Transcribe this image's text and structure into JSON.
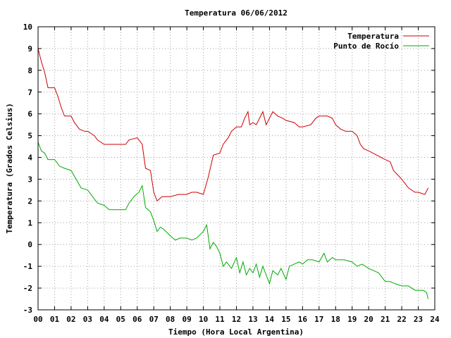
{
  "chart_data": {
    "type": "line",
    "title": "Temperatura 06/06/2012",
    "xlabel": "Tiempo (Hora Local Argentina)",
    "ylabel": "Temperatura (Grados Celsius)",
    "xlim": [
      0,
      24
    ],
    "ylim": [
      -3,
      10
    ],
    "x_ticks": [
      0,
      1,
      2,
      3,
      4,
      5,
      6,
      7,
      8,
      9,
      10,
      11,
      12,
      13,
      14,
      15,
      16,
      17,
      18,
      19,
      20,
      21,
      22,
      23,
      24
    ],
    "x_tick_labels": [
      "00",
      "01",
      "02",
      "03",
      "04",
      "05",
      "06",
      "07",
      "08",
      "09",
      "10",
      "11",
      "12",
      "13",
      "14",
      "15",
      "16",
      "17",
      "18",
      "19",
      "20",
      "21",
      "22",
      "23",
      "24"
    ],
    "y_ticks": [
      -3,
      -2,
      -1,
      0,
      1,
      2,
      3,
      4,
      5,
      6,
      7,
      8,
      9,
      10
    ],
    "y_tick_labels": [
      "-3",
      "-2",
      "-1",
      "0",
      "1",
      "2",
      "3",
      "4",
      "5",
      "6",
      "7",
      "8",
      "9",
      "10"
    ],
    "grid": true,
    "legend_position": "top-right",
    "series": [
      {
        "name": "Temperatura",
        "color": "#cc0000",
        "points": [
          [
            0.0,
            9.0
          ],
          [
            0.2,
            8.4
          ],
          [
            0.4,
            7.9
          ],
          [
            0.6,
            7.2
          ],
          [
            1.0,
            7.2
          ],
          [
            1.2,
            6.8
          ],
          [
            1.4,
            6.3
          ],
          [
            1.6,
            5.9
          ],
          [
            2.0,
            5.9
          ],
          [
            2.2,
            5.6
          ],
          [
            2.5,
            5.3
          ],
          [
            2.8,
            5.2
          ],
          [
            3.0,
            5.2
          ],
          [
            3.2,
            5.1
          ],
          [
            3.4,
            5.0
          ],
          [
            3.6,
            4.8
          ],
          [
            4.0,
            4.6
          ],
          [
            4.5,
            4.6
          ],
          [
            5.0,
            4.6
          ],
          [
            5.3,
            4.6
          ],
          [
            5.5,
            4.8
          ],
          [
            6.0,
            4.9
          ],
          [
            6.3,
            4.6
          ],
          [
            6.5,
            3.5
          ],
          [
            6.8,
            3.4
          ],
          [
            7.0,
            2.4
          ],
          [
            7.2,
            2.0
          ],
          [
            7.5,
            2.2
          ],
          [
            8.0,
            2.2
          ],
          [
            8.5,
            2.3
          ],
          [
            9.0,
            2.3
          ],
          [
            9.3,
            2.4
          ],
          [
            9.6,
            2.4
          ],
          [
            10.0,
            2.3
          ],
          [
            10.3,
            3.1
          ],
          [
            10.6,
            4.1
          ],
          [
            11.0,
            4.2
          ],
          [
            11.2,
            4.6
          ],
          [
            11.5,
            4.9
          ],
          [
            11.7,
            5.2
          ],
          [
            12.0,
            5.4
          ],
          [
            12.3,
            5.4
          ],
          [
            12.5,
            5.8
          ],
          [
            12.7,
            6.1
          ],
          [
            12.8,
            5.5
          ],
          [
            13.0,
            5.6
          ],
          [
            13.2,
            5.5
          ],
          [
            13.4,
            5.8
          ],
          [
            13.6,
            6.1
          ],
          [
            13.8,
            5.5
          ],
          [
            14.0,
            5.8
          ],
          [
            14.2,
            6.1
          ],
          [
            14.5,
            5.9
          ],
          [
            14.8,
            5.8
          ],
          [
            15.0,
            5.7
          ],
          [
            15.5,
            5.6
          ],
          [
            15.8,
            5.4
          ],
          [
            16.0,
            5.4
          ],
          [
            16.5,
            5.5
          ],
          [
            16.8,
            5.8
          ],
          [
            17.0,
            5.9
          ],
          [
            17.5,
            5.9
          ],
          [
            17.8,
            5.8
          ],
          [
            18.0,
            5.5
          ],
          [
            18.3,
            5.3
          ],
          [
            18.6,
            5.2
          ],
          [
            19.0,
            5.2
          ],
          [
            19.3,
            5.0
          ],
          [
            19.5,
            4.6
          ],
          [
            19.7,
            4.4
          ],
          [
            20.0,
            4.3
          ],
          [
            20.5,
            4.1
          ],
          [
            21.0,
            3.9
          ],
          [
            21.3,
            3.8
          ],
          [
            21.5,
            3.4
          ],
          [
            22.0,
            3.0
          ],
          [
            22.4,
            2.6
          ],
          [
            22.8,
            2.4
          ],
          [
            23.0,
            2.4
          ],
          [
            23.4,
            2.3
          ],
          [
            23.6,
            2.6
          ]
        ]
      },
      {
        "name": "Punto de Rocío",
        "color": "#00aa00",
        "points": [
          [
            0.0,
            4.7
          ],
          [
            0.2,
            4.3
          ],
          [
            0.4,
            4.2
          ],
          [
            0.6,
            3.9
          ],
          [
            1.0,
            3.9
          ],
          [
            1.3,
            3.6
          ],
          [
            1.6,
            3.5
          ],
          [
            2.0,
            3.4
          ],
          [
            2.3,
            3.0
          ],
          [
            2.6,
            2.6
          ],
          [
            3.0,
            2.5
          ],
          [
            3.3,
            2.2
          ],
          [
            3.6,
            1.9
          ],
          [
            4.0,
            1.8
          ],
          [
            4.3,
            1.6
          ],
          [
            4.6,
            1.6
          ],
          [
            5.0,
            1.6
          ],
          [
            5.3,
            1.6
          ],
          [
            5.5,
            1.9
          ],
          [
            5.8,
            2.2
          ],
          [
            6.1,
            2.4
          ],
          [
            6.3,
            2.7
          ],
          [
            6.5,
            1.7
          ],
          [
            6.8,
            1.5
          ],
          [
            7.0,
            1.1
          ],
          [
            7.2,
            0.6
          ],
          [
            7.4,
            0.8
          ],
          [
            7.6,
            0.7
          ],
          [
            8.0,
            0.4
          ],
          [
            8.3,
            0.2
          ],
          [
            8.6,
            0.3
          ],
          [
            9.0,
            0.3
          ],
          [
            9.3,
            0.2
          ],
          [
            9.6,
            0.3
          ],
          [
            10.0,
            0.6
          ],
          [
            10.2,
            0.9
          ],
          [
            10.4,
            -0.2
          ],
          [
            10.6,
            0.1
          ],
          [
            10.8,
            -0.1
          ],
          [
            11.0,
            -0.4
          ],
          [
            11.2,
            -1.0
          ],
          [
            11.4,
            -0.8
          ],
          [
            11.7,
            -1.1
          ],
          [
            12.0,
            -0.6
          ],
          [
            12.2,
            -1.3
          ],
          [
            12.4,
            -0.8
          ],
          [
            12.6,
            -1.4
          ],
          [
            12.8,
            -1.1
          ],
          [
            13.0,
            -1.3
          ],
          [
            13.2,
            -0.9
          ],
          [
            13.4,
            -1.5
          ],
          [
            13.6,
            -1.0
          ],
          [
            13.8,
            -1.4
          ],
          [
            14.0,
            -1.8
          ],
          [
            14.2,
            -1.2
          ],
          [
            14.5,
            -1.4
          ],
          [
            14.7,
            -1.1
          ],
          [
            15.0,
            -1.6
          ],
          [
            15.2,
            -1.0
          ],
          [
            15.5,
            -0.9
          ],
          [
            15.8,
            -0.8
          ],
          [
            16.0,
            -0.9
          ],
          [
            16.3,
            -0.7
          ],
          [
            16.6,
            -0.7
          ],
          [
            17.0,
            -0.8
          ],
          [
            17.3,
            -0.4
          ],
          [
            17.5,
            -0.8
          ],
          [
            17.8,
            -0.6
          ],
          [
            18.0,
            -0.7
          ],
          [
            18.5,
            -0.7
          ],
          [
            19.0,
            -0.8
          ],
          [
            19.3,
            -1.0
          ],
          [
            19.6,
            -0.9
          ],
          [
            20.0,
            -1.1
          ],
          [
            20.3,
            -1.2
          ],
          [
            20.6,
            -1.3
          ],
          [
            21.0,
            -1.7
          ],
          [
            21.3,
            -1.7
          ],
          [
            21.6,
            -1.8
          ],
          [
            22.0,
            -1.9
          ],
          [
            22.4,
            -1.9
          ],
          [
            22.8,
            -2.1
          ],
          [
            23.0,
            -2.1
          ],
          [
            23.3,
            -2.1
          ],
          [
            23.5,
            -2.2
          ],
          [
            23.6,
            -2.5
          ]
        ]
      }
    ]
  }
}
